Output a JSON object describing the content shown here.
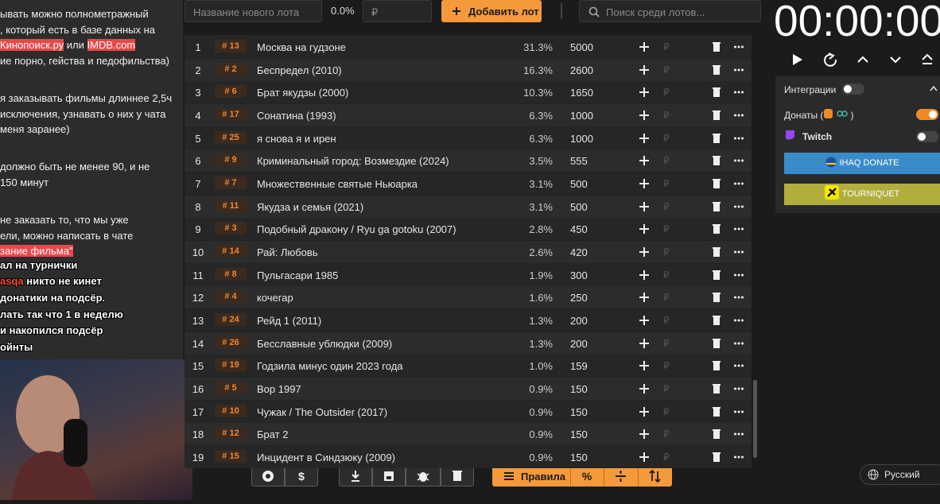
{
  "notes": {
    "paragraphs": [
      [
        [
          {
            "text": "ывать можно полнометражный"
          }
        ],
        [
          {
            "text": ", который есть в базе данных на"
          }
        ],
        [
          {
            "text": "Кинопоиск.ру",
            "highlight": true
          },
          {
            "text": " или "
          },
          {
            "text": "IMDB.com",
            "highlight": true
          }
        ],
        [
          {
            "text": "ие порно, гейства и педофильства)"
          }
        ]
      ],
      [
        [
          {
            "text": "я заказывать фильмы длиннее 2,5ч"
          }
        ],
        [
          {
            "text": "исключения, узнавать о них у чата"
          }
        ],
        [
          {
            "text": "меня заранее)"
          }
        ]
      ],
      [
        [
          {
            "text": "должно быть не менее 90, и не"
          }
        ],
        [
          {
            "text": "150 минут"
          }
        ]
      ],
      [
        [
          {
            "text": "не заказать то, что мы уже"
          }
        ],
        [
          {
            "text": "ели, можно написать в чате"
          }
        ],
        [
          {
            "text": "зание фильма\"",
            "highlight": true
          }
        ]
      ]
    ],
    "overlay_lines": [
      [
        {
          "text": "ал на турнички"
        }
      ],
      [
        {
          "text": "asqa",
          "highlight": true
        },
        {
          "text": " никто не кинет"
        }
      ],
      [
        {
          "text": "донатики на подсёр."
        }
      ],
      [
        {
          "text": "лать так что 1 в неделю"
        }
      ],
      [
        {
          "text": "и накопился подсёр"
        }
      ],
      [
        {
          "text": "ойнты"
        }
      ]
    ]
  },
  "top_bar": {
    "name_placeholder": "Название нового лота",
    "percent": "0.0%",
    "currency": "₽",
    "add_button": "Добавить лот",
    "search_placeholder": "Поиск среди лотов..."
  },
  "table": {
    "currency": "₽",
    "rows": [
      {
        "num": 1,
        "id": "# 13",
        "name": "Москва на гудзоне",
        "percent": "31.3%",
        "amount": 5000
      },
      {
        "num": 2,
        "id": "# 2",
        "name": "Беспредел (2010)",
        "percent": "16.3%",
        "amount": 2600
      },
      {
        "num": 3,
        "id": "# 6",
        "name": "Брат якудзы (2000)",
        "percent": "10.3%",
        "amount": 1650
      },
      {
        "num": 4,
        "id": "# 17",
        "name": "Сонатина (1993)",
        "percent": "6.3%",
        "amount": 1000
      },
      {
        "num": 5,
        "id": "# 25",
        "name": "я снова я и ирен",
        "percent": "6.3%",
        "amount": 1000
      },
      {
        "num": 6,
        "id": "# 9",
        "name": "Криминальный город: Возмездие (2024)",
        "percent": "3.5%",
        "amount": 555
      },
      {
        "num": 7,
        "id": "# 7",
        "name": "Множественные святые Ньюарка",
        "percent": "3.1%",
        "amount": 500
      },
      {
        "num": 8,
        "id": "# 11",
        "name": "Якудза и семья (2021)",
        "percent": "3.1%",
        "amount": 500
      },
      {
        "num": 9,
        "id": "# 3",
        "name": "Подобный дракону / Ryu ga gotoku (2007)",
        "percent": "2.8%",
        "amount": 450
      },
      {
        "num": 10,
        "id": "# 14",
        "name": "Рай: Любовь",
        "percent": "2.6%",
        "amount": 420
      },
      {
        "num": 11,
        "id": "# 8",
        "name": "Пульгасари 1985",
        "percent": "1.9%",
        "amount": 300
      },
      {
        "num": 12,
        "id": "# 4",
        "name": "кочегар",
        "percent": "1.6%",
        "amount": 250
      },
      {
        "num": 13,
        "id": "# 24",
        "name": "Рейд 1 (2011)",
        "percent": "1.3%",
        "amount": 200
      },
      {
        "num": 14,
        "id": "# 26",
        "name": "Бесславные ублюдки (2009)",
        "percent": "1.3%",
        "amount": 200
      },
      {
        "num": 15,
        "id": "# 19",
        "name": "Годзила минус один 2023 года",
        "percent": "1.0%",
        "amount": 159
      },
      {
        "num": 16,
        "id": "# 5",
        "name": "Вор 1997",
        "percent": "0.9%",
        "amount": 150
      },
      {
        "num": 17,
        "id": "# 10",
        "name": "Чужак / The Outsider (2017)",
        "percent": "0.9%",
        "amount": 150
      },
      {
        "num": 18,
        "id": "# 12",
        "name": "Брат 2",
        "percent": "0.9%",
        "amount": 150
      },
      {
        "num": 19,
        "id": "# 15",
        "name": "Инцидент в Синдзюку (2009)",
        "percent": "0.9%",
        "amount": 150
      }
    ]
  },
  "toolbar": {
    "rules": "Правила",
    "percent_toggle": "%"
  },
  "timer": "00:00:00",
  "integrations": {
    "title": "Интеграции",
    "donations_open": "Донаты (",
    "donations_close": ")",
    "twitch": "Twitch",
    "ihaq": "IHAQ DONATE",
    "tourniquet": "TOURNIQUET"
  },
  "language": "Русский"
}
